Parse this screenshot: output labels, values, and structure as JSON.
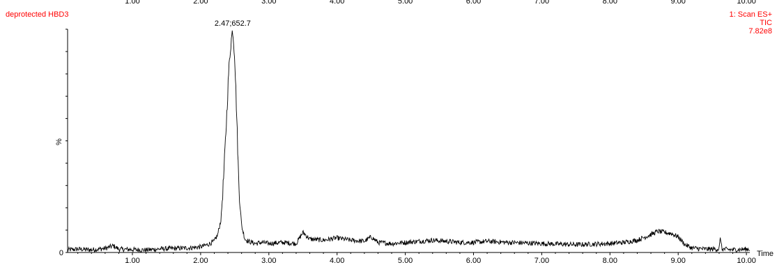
{
  "header": {
    "sample_name": "deprotected HBD3",
    "scan_mode": "1: Scan ES+",
    "trace_type": "TIC",
    "intensity_max": "7.82e8",
    "top_axis_ticks": [
      "1.00",
      "2.00",
      "3.00",
      "4.00",
      "5.00",
      "6.00",
      "7.00",
      "8.00",
      "9.00",
      "10.00"
    ]
  },
  "colors": {
    "header_text": "#ff0000",
    "trace": "#000000",
    "axis": "#000000"
  },
  "chart_data": {
    "type": "line",
    "title": "deprotected HBD3",
    "xlabel": "Time",
    "ylabel": "%",
    "xlim": [
      0.05,
      10.05
    ],
    "ylim": [
      0,
      100
    ],
    "x_ticks": [
      1.0,
      2.0,
      3.0,
      4.0,
      5.0,
      6.0,
      7.0,
      8.0,
      9.0,
      10.0
    ],
    "x_tick_labels": [
      "1.00",
      "2.00",
      "3.00",
      "4.00",
      "5.00",
      "6.00",
      "7.00",
      "8.00",
      "9.00",
      "10.00"
    ],
    "y_tick_labels": [
      "0"
    ],
    "grid": false,
    "legend": "none",
    "annotations": [
      {
        "x": 2.47,
        "y": 100,
        "text": "2.47;652.7"
      }
    ],
    "series": [
      {
        "x": [
          0.05,
          0.2,
          0.4,
          0.6,
          0.72,
          0.8,
          1.0,
          1.2,
          1.4,
          1.6,
          1.8,
          2.0,
          2.1,
          2.2,
          2.25,
          2.3,
          2.34,
          2.38,
          2.41,
          2.44,
          2.47,
          2.5,
          2.53,
          2.56,
          2.6,
          2.65,
          2.7,
          2.8,
          2.9,
          3.0,
          3.2,
          3.4,
          3.5,
          3.6,
          3.8,
          4.0,
          4.2,
          4.4,
          4.5,
          4.6,
          4.8,
          5.0,
          5.2,
          5.4,
          5.6,
          5.8,
          6.0,
          6.2,
          6.5,
          7.0,
          7.5,
          8.0,
          8.2,
          8.4,
          8.6,
          8.7,
          8.8,
          8.9,
          9.0,
          9.1,
          9.2,
          9.4,
          9.6,
          9.62,
          9.64,
          9.8,
          10.0
        ],
        "y": [
          1.2,
          1.5,
          1.2,
          1.8,
          3.0,
          1.5,
          1.3,
          1.1,
          1.6,
          1.8,
          2.0,
          2.5,
          3.5,
          5.0,
          8.0,
          15.0,
          35.0,
          60.0,
          80.0,
          93.0,
          100.0,
          88.0,
          60.0,
          30.0,
          12.0,
          6.0,
          5.0,
          4.0,
          4.5,
          4.0,
          4.5,
          4.0,
          9.0,
          6.0,
          5.5,
          6.5,
          5.5,
          5.0,
          7.0,
          4.5,
          4.0,
          4.5,
          5.0,
          5.5,
          5.0,
          4.5,
          4.5,
          5.0,
          4.5,
          4.0,
          3.5,
          4.0,
          4.5,
          5.5,
          8.0,
          9.5,
          9.0,
          8.5,
          7.0,
          3.5,
          2.0,
          1.5,
          1.5,
          7.0,
          1.5,
          1.2,
          1.5
        ]
      }
    ]
  }
}
